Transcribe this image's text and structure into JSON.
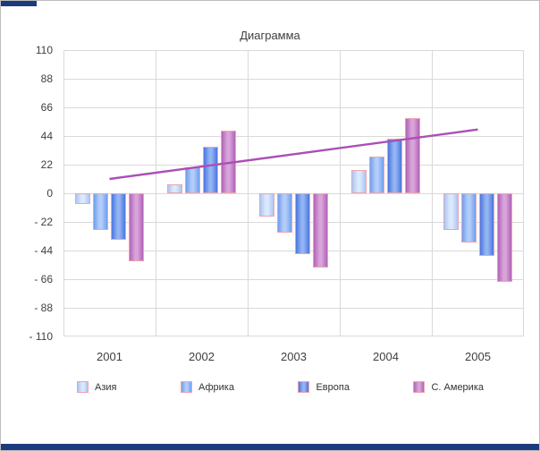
{
  "window": {
    "accent_color": "#1c3a7e",
    "border_color": "#bdbdbd"
  },
  "chart_data": {
    "type": "bar",
    "title": "Диаграмма",
    "categories": [
      "2001",
      "2002",
      "2003",
      "2004",
      "2005"
    ],
    "series": [
      {
        "key": "asia",
        "name": "Азия",
        "color": "#a9c7f3",
        "light": "#dce9fc",
        "values": [
          -8,
          7,
          -18,
          18,
          -28
        ]
      },
      {
        "key": "africa",
        "name": "Африка",
        "color": "#6f9ff0",
        "light": "#b3cdf8",
        "values": [
          -28,
          20,
          -30,
          28,
          -38
        ]
      },
      {
        "key": "europe",
        "name": "Европа",
        "color": "#4a76e0",
        "light": "#93b4f2",
        "values": [
          -36,
          36,
          -47,
          42,
          -48
        ]
      },
      {
        "key": "n-america",
        "name": "С. Америка",
        "color": "#b263b6",
        "light": "#d8a4da",
        "values": [
          -52,
          48,
          -57,
          58,
          -68
        ]
      }
    ],
    "ylim": [
      -110,
      110
    ],
    "yticks": [
      110,
      88,
      66,
      44,
      22,
      0,
      -22,
      -44,
      -66,
      -88,
      -110
    ],
    "ytick_labels": [
      "110",
      "88",
      "66",
      "44",
      "22",
      "0",
      "- 22",
      "- 44",
      "- 66",
      "- 88",
      "- 110"
    ],
    "grid": true,
    "grid_color": "#d9d9d9",
    "bar_border_color": "#efa3ae",
    "legend_position": "bottom",
    "trendline": {
      "start": 11,
      "end": 49,
      "color": "#aa4fb6"
    }
  }
}
